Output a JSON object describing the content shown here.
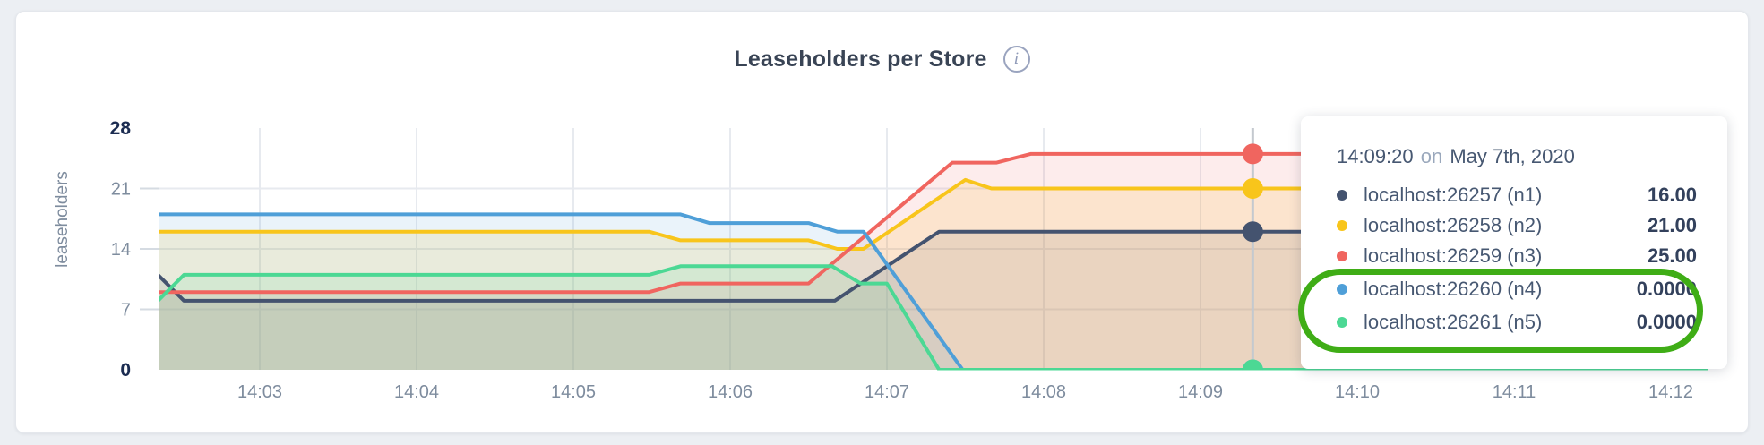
{
  "header": {
    "title": "Leaseholders per Store",
    "info_icon": "i"
  },
  "chart_data": {
    "type": "area",
    "title": "Leaseholders per Store",
    "ylabel": "leaseholders",
    "ylim": [
      0,
      28
    ],
    "yticks": [
      {
        "value": 0,
        "label": "0",
        "bold": true,
        "grid": false
      },
      {
        "value": 7,
        "label": "7",
        "bold": false,
        "grid": true
      },
      {
        "value": 14,
        "label": "14",
        "bold": false,
        "grid": true
      },
      {
        "value": 21,
        "label": "21",
        "bold": false,
        "grid": true
      },
      {
        "value": 28,
        "label": "28",
        "bold": true,
        "grid": false
      }
    ],
    "xticks": [
      "14:03",
      "14:04",
      "14:05",
      "14:06",
      "14:07",
      "14:08",
      "14:09",
      "14:10",
      "14:11",
      "14:12"
    ],
    "x_start": "14:02:21",
    "x_end": "14:12:14",
    "grid": true,
    "series": [
      {
        "name": "localhost:26257 (n1)",
        "color": "#44536F",
        "fill_opacity": 0.12,
        "points": [
          [
            "14:02:21",
            11
          ],
          [
            "14:02:31",
            8
          ],
          [
            "14:06:40",
            8
          ],
          [
            "14:07:20",
            16
          ],
          [
            "14:12:14",
            16
          ]
        ]
      },
      {
        "name": "localhost:26258 (n2)",
        "color": "#F8C51B",
        "fill_opacity": 0.15,
        "points": [
          [
            "14:02:21",
            16
          ],
          [
            "14:05:29",
            16
          ],
          [
            "14:05:41",
            15
          ],
          [
            "14:06:30",
            15
          ],
          [
            "14:06:41",
            14
          ],
          [
            "14:06:51",
            14
          ],
          [
            "14:07:30",
            22
          ],
          [
            "14:07:40",
            21
          ],
          [
            "14:12:14",
            21
          ]
        ]
      },
      {
        "name": "localhost:26259 (n3)",
        "color": "#F0655F",
        "fill_opacity": 0.12,
        "points": [
          [
            "14:02:21",
            9
          ],
          [
            "14:05:29",
            9
          ],
          [
            "14:05:41",
            10
          ],
          [
            "14:06:30",
            10
          ],
          [
            "14:07:25",
            24
          ],
          [
            "14:07:42",
            24
          ],
          [
            "14:07:55",
            25
          ],
          [
            "14:12:14",
            25
          ]
        ]
      },
      {
        "name": "localhost:26260 (n4)",
        "color": "#4F9FD8",
        "fill_opacity": 0.12,
        "points": [
          [
            "14:02:21",
            18
          ],
          [
            "14:05:41",
            18
          ],
          [
            "14:05:52",
            17
          ],
          [
            "14:06:30",
            17
          ],
          [
            "14:06:41",
            16
          ],
          [
            "14:06:51",
            16
          ],
          [
            "14:07:29",
            0
          ],
          [
            "14:12:14",
            0
          ]
        ]
      },
      {
        "name": "localhost:26261 (n5)",
        "color": "#4CD894",
        "fill_opacity": 0.13,
        "points": [
          [
            "14:02:21",
            8
          ],
          [
            "14:02:31",
            11
          ],
          [
            "14:05:29",
            11
          ],
          [
            "14:05:41",
            12
          ],
          [
            "14:06:39",
            12
          ],
          [
            "14:06:50",
            10
          ],
          [
            "14:07:00",
            10
          ],
          [
            "14:07:20",
            0
          ],
          [
            "14:12:14",
            0
          ]
        ]
      }
    ],
    "crosshair": {
      "time": "14:09:20",
      "values": [
        16,
        21,
        25,
        0,
        0
      ]
    }
  },
  "tooltip": {
    "time": "14:09:20",
    "on_word": "on",
    "date": "May 7th, 2020",
    "rows": [
      {
        "label": "localhost:26257 (n1)",
        "value": "16.00"
      },
      {
        "label": "localhost:26258 (n2)",
        "value": "21.00"
      },
      {
        "label": "localhost:26259 (n3)",
        "value": "25.00"
      },
      {
        "label": "localhost:26260 (n4)",
        "value": "0.0000"
      },
      {
        "label": "localhost:26261 (n5)",
        "value": "0.0000"
      }
    ],
    "highlighted_rows": [
      3,
      4
    ]
  },
  "annotation": {
    "shape": "oval-highlight",
    "color": "#3FAD16"
  }
}
